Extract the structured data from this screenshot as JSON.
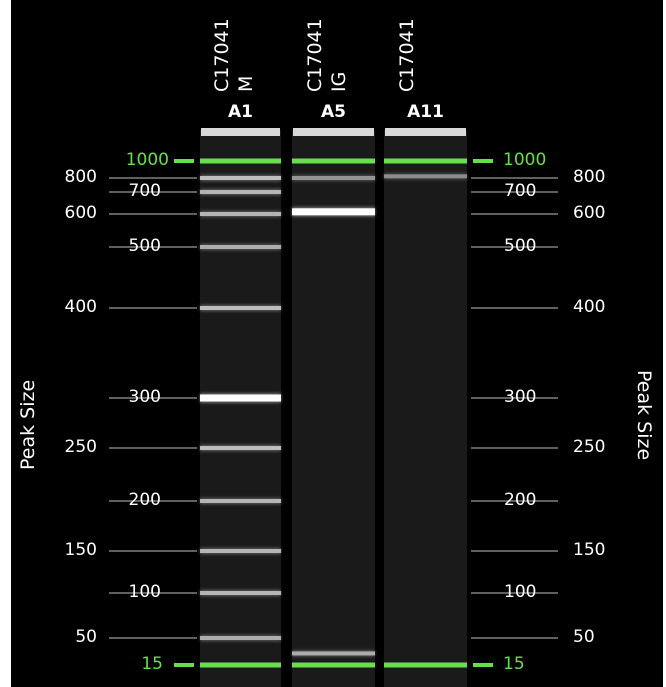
{
  "axis": {
    "left_title": "Peak Size",
    "right_title": "Peak Size",
    "ticks": [
      {
        "value": 1000,
        "label": "1000",
        "marker": true
      },
      {
        "value": 800,
        "label": "800",
        "marker": false
      },
      {
        "value": 700,
        "label": "700",
        "marker": false
      },
      {
        "value": 600,
        "label": "600",
        "marker": false
      },
      {
        "value": 500,
        "label": "500",
        "marker": false
      },
      {
        "value": 400,
        "label": "400",
        "marker": false
      },
      {
        "value": 300,
        "label": "300",
        "marker": false
      },
      {
        "value": 250,
        "label": "250",
        "marker": false
      },
      {
        "value": 200,
        "label": "200",
        "marker": false
      },
      {
        "value": 150,
        "label": "150",
        "marker": false
      },
      {
        "value": 100,
        "label": "100",
        "marker": false
      },
      {
        "value": 50,
        "label": "50",
        "marker": false
      },
      {
        "value": 15,
        "label": "15",
        "marker": true
      }
    ]
  },
  "lanes": [
    {
      "well": "A1",
      "sample_line1": "C17041",
      "sample_line2": "M",
      "bands": [
        {
          "size": 1000,
          "intensity": 1.0,
          "marker": true
        },
        {
          "size": 800,
          "intensity": 0.6
        },
        {
          "size": 700,
          "intensity": 0.55
        },
        {
          "size": 600,
          "intensity": 0.55
        },
        {
          "size": 500,
          "intensity": 0.5
        },
        {
          "size": 400,
          "intensity": 0.6
        },
        {
          "size": 300,
          "intensity": 1.0
        },
        {
          "size": 250,
          "intensity": 0.6
        },
        {
          "size": 200,
          "intensity": 0.55
        },
        {
          "size": 150,
          "intensity": 0.55
        },
        {
          "size": 100,
          "intensity": 0.55
        },
        {
          "size": 50,
          "intensity": 0.5
        },
        {
          "size": 15,
          "intensity": 1.0,
          "marker": true
        }
      ]
    },
    {
      "well": "A5",
      "sample_line1": "C17041",
      "sample_line2": "IG",
      "bands": [
        {
          "size": 1000,
          "intensity": 1.0,
          "marker": true
        },
        {
          "size": 800,
          "intensity": 0.35
        },
        {
          "size": 610,
          "intensity": 1.0
        },
        {
          "size": 30,
          "intensity": 0.5
        },
        {
          "size": 15,
          "intensity": 1.0,
          "marker": true
        }
      ]
    },
    {
      "well": "A11",
      "sample_line1": "C17041",
      "sample_line2": "",
      "bands": [
        {
          "size": 1000,
          "intensity": 1.0,
          "marker": true
        },
        {
          "size": 820,
          "intensity": 0.3
        },
        {
          "size": 15,
          "intensity": 1.0,
          "marker": true
        }
      ]
    }
  ],
  "colors": {
    "background": "#000000",
    "marker_band": "#66e04a",
    "tick_line": "#9a9a9a",
    "lane_bg": "#1a1a1a",
    "text": "#ffffff"
  }
}
